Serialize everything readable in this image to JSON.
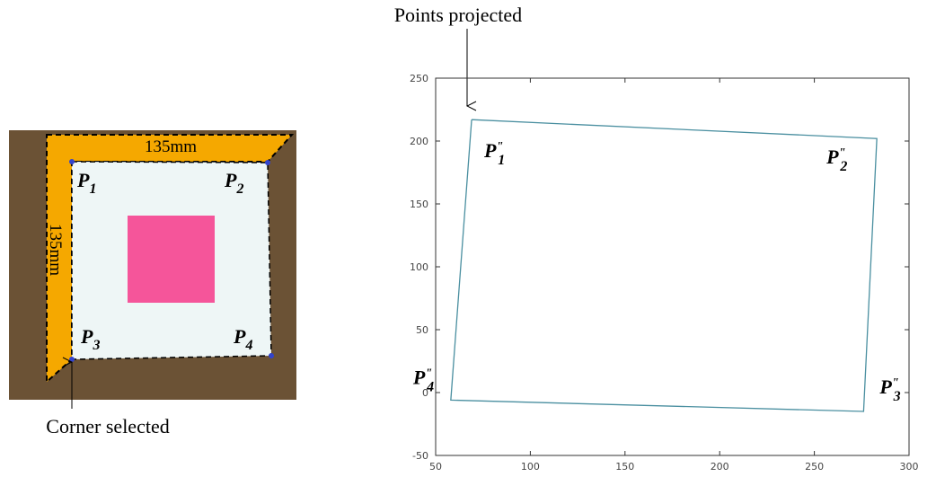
{
  "photo": {
    "top_length": "135mm",
    "side_length": "135mm",
    "caption": "Corner selected",
    "corners": [
      {
        "base": "P",
        "sub": "1"
      },
      {
        "base": "P",
        "sub": "2"
      },
      {
        "base": "P",
        "sub": "3"
      },
      {
        "base": "P",
        "sub": "4"
      }
    ]
  },
  "chart_data": {
    "type": "line",
    "annotation": "Points projected",
    "x": [
      69,
      283,
      276,
      58,
      69
    ],
    "y": [
      217,
      202,
      -15,
      -6,
      217
    ],
    "color": "#4a8fa0",
    "xlim": [
      50,
      300
    ],
    "ylim": [
      -50,
      250
    ],
    "xticks": [
      50,
      100,
      150,
      200,
      250,
      300
    ],
    "yticks": [
      -50,
      0,
      50,
      100,
      150,
      200,
      250
    ],
    "point_labels": [
      {
        "base": "P",
        "sup": "\"",
        "sub": "1"
      },
      {
        "base": "P",
        "sup": "\"",
        "sub": "2"
      },
      {
        "base": "P",
        "sup": "\"",
        "sub": "3"
      },
      {
        "base": "P",
        "sup": "\"",
        "sub": "4"
      }
    ]
  }
}
